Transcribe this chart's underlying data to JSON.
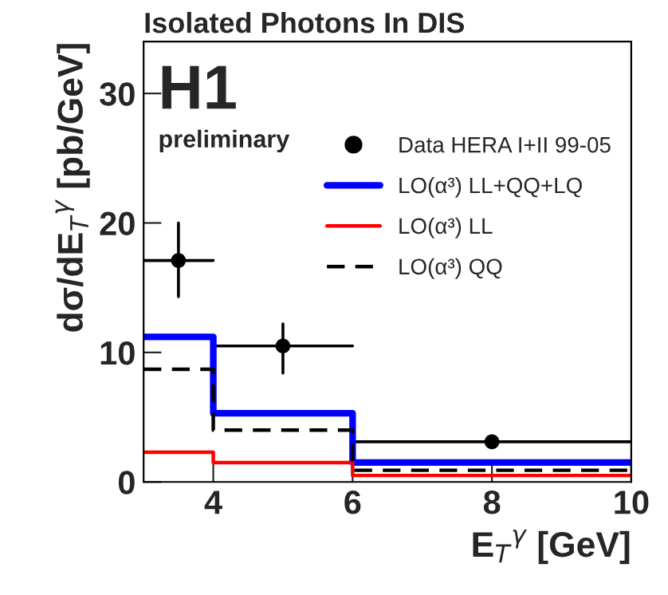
{
  "chart_data": {
    "type": "scatter",
    "title": "Isolated Photons In DIS",
    "xlabel": "E$_{T}$$^{γ}$ [GeV]",
    "ylabel": "dσ/dE$_{T}$$^{γ}$ [pb/GeV]",
    "xlim": [
      3,
      10
    ],
    "ylim": [
      0,
      34
    ],
    "xticks": [
      4,
      6,
      8,
      10
    ],
    "yticks": [
      0,
      10,
      20,
      30
    ],
    "legend": "top right",
    "grid": false,
    "annotations": [
      "H1",
      "preliminary"
    ],
    "series": [
      {
        "name": "Data HERA I+II 99-05",
        "marker": "circle",
        "color": "#000000",
        "x": [
          3.5,
          5,
          8
        ],
        "values": [
          17.1,
          10.5,
          3.1
        ],
        "errors": [
          [
            14.3,
            20.0
          ],
          [
            8.4,
            12.2
          ],
          null
        ],
        "xerrors": [
          [
            3,
            4
          ],
          [
            4,
            6
          ],
          [
            6,
            10
          ]
        ]
      },
      {
        "name": "LO(α³) LL+QQ+LQ",
        "type": "step",
        "line_style": "solid",
        "color": "#0000ff",
        "x": [
          3,
          4,
          6,
          10
        ],
        "values": [
          11.2,
          5.3,
          1.5,
          1.5
        ]
      },
      {
        "name": "LO(α³) LL",
        "type": "step",
        "line_style": "solid",
        "color": "#ff0000",
        "x": [
          3,
          4,
          6,
          10
        ],
        "values": [
          2.3,
          1.5,
          0.5,
          0.5
        ]
      },
      {
        "name": "LO(α³) QQ",
        "type": "step",
        "line_style": "dashed",
        "color": "#000000",
        "x": [
          3,
          4,
          6,
          10
        ],
        "values": [
          8.7,
          4.0,
          0.9,
          0.9
        ]
      }
    ]
  }
}
